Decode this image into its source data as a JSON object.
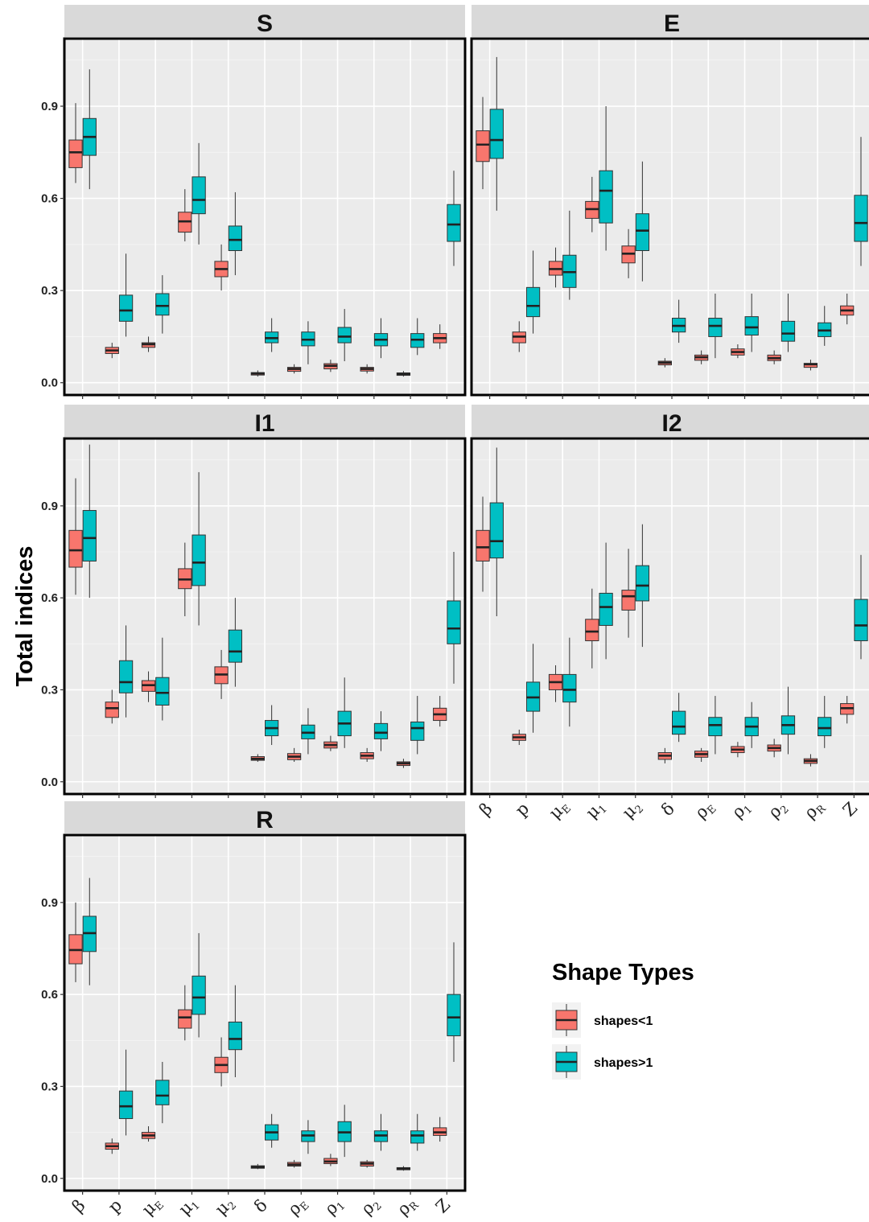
{
  "chart_data": {
    "type": "boxplot",
    "ylabel": "Total indices",
    "y_ticks": [
      "0.0",
      "0.3",
      "0.6",
      "0.9"
    ],
    "ylim": [
      -0.04,
      1.12
    ],
    "legend": {
      "title": "Shape Types",
      "entries": [
        {
          "label": "shapes<1",
          "color": "#F8766D"
        },
        {
          "label": "shapes>1",
          "color": "#00BFC4"
        }
      ]
    },
    "categories": [
      {
        "base": "β",
        "sub": ""
      },
      {
        "base": "p",
        "sub": ""
      },
      {
        "base": "μ",
        "sub": "E"
      },
      {
        "base": "μ",
        "sub": "1"
      },
      {
        "base": "μ",
        "sub": "2"
      },
      {
        "base": "δ",
        "sub": ""
      },
      {
        "base": "ρ",
        "sub": "E"
      },
      {
        "base": "ρ",
        "sub": "1"
      },
      {
        "base": "ρ",
        "sub": "2"
      },
      {
        "base": "ρ",
        "sub": "R"
      },
      {
        "base": "Z",
        "sub": ""
      }
    ],
    "panels": [
      {
        "name": "S",
        "series": [
          {
            "name": "shapes<1",
            "boxes": [
              [
                0.65,
                0.7,
                0.75,
                0.79,
                0.91
              ],
              [
                0.08,
                0.095,
                0.105,
                0.115,
                0.13
              ],
              [
                0.1,
                0.115,
                0.125,
                0.13,
                0.15
              ],
              [
                0.46,
                0.49,
                0.525,
                0.555,
                0.63
              ],
              [
                0.3,
                0.345,
                0.37,
                0.395,
                0.45
              ],
              [
                0.02,
                0.025,
                0.03,
                0.033,
                0.04
              ],
              [
                0.03,
                0.037,
                0.045,
                0.05,
                0.06
              ],
              [
                0.035,
                0.045,
                0.055,
                0.062,
                0.075
              ],
              [
                0.03,
                0.038,
                0.045,
                0.05,
                0.06
              ],
              [
                0.02,
                0.024,
                0.028,
                0.032,
                0.038
              ],
              [
                0.11,
                0.13,
                0.145,
                0.16,
                0.19
              ]
            ]
          },
          {
            "name": "shapes>1",
            "boxes": [
              [
                0.63,
                0.74,
                0.8,
                0.86,
                1.02
              ],
              [
                0.15,
                0.2,
                0.235,
                0.285,
                0.42
              ],
              [
                0.16,
                0.22,
                0.25,
                0.29,
                0.35
              ],
              [
                0.45,
                0.55,
                0.595,
                0.67,
                0.78
              ],
              [
                0.35,
                0.43,
                0.465,
                0.51,
                0.62
              ],
              [
                0.1,
                0.13,
                0.145,
                0.165,
                0.21
              ],
              [
                0.06,
                0.12,
                0.14,
                0.165,
                0.2
              ],
              [
                0.07,
                0.13,
                0.15,
                0.18,
                0.24
              ],
              [
                0.08,
                0.12,
                0.14,
                0.16,
                0.21
              ],
              [
                0.09,
                0.115,
                0.14,
                0.16,
                0.21
              ],
              [
                0.38,
                0.46,
                0.515,
                0.58,
                0.69
              ]
            ]
          }
        ]
      },
      {
        "name": "E",
        "series": [
          {
            "name": "shapes<1",
            "boxes": [
              [
                0.63,
                0.72,
                0.775,
                0.82,
                0.93
              ],
              [
                0.1,
                0.13,
                0.15,
                0.165,
                0.2
              ],
              [
                0.31,
                0.35,
                0.37,
                0.395,
                0.44
              ],
              [
                0.49,
                0.535,
                0.565,
                0.59,
                0.67
              ],
              [
                0.34,
                0.39,
                0.42,
                0.445,
                0.5
              ],
              [
                0.05,
                0.058,
                0.065,
                0.07,
                0.08
              ],
              [
                0.06,
                0.073,
                0.083,
                0.09,
                0.105
              ],
              [
                0.08,
                0.09,
                0.1,
                0.11,
                0.125
              ],
              [
                0.06,
                0.072,
                0.08,
                0.09,
                0.105
              ],
              [
                0.04,
                0.05,
                0.06,
                0.063,
                0.075
              ],
              [
                0.19,
                0.22,
                0.235,
                0.25,
                0.29
              ]
            ]
          },
          {
            "name": "shapes>1",
            "boxes": [
              [
                0.56,
                0.73,
                0.79,
                0.89,
                1.06
              ],
              [
                0.16,
                0.215,
                0.25,
                0.31,
                0.43
              ],
              [
                0.27,
                0.31,
                0.36,
                0.415,
                0.56
              ],
              [
                0.43,
                0.52,
                0.625,
                0.69,
                0.9
              ],
              [
                0.33,
                0.43,
                0.495,
                0.55,
                0.72
              ],
              [
                0.13,
                0.165,
                0.185,
                0.21,
                0.27
              ],
              [
                0.08,
                0.15,
                0.185,
                0.21,
                0.29
              ],
              [
                0.1,
                0.155,
                0.18,
                0.215,
                0.29
              ],
              [
                0.1,
                0.135,
                0.16,
                0.2,
                0.29
              ],
              [
                0.12,
                0.15,
                0.17,
                0.195,
                0.25
              ],
              [
                0.38,
                0.46,
                0.52,
                0.61,
                0.8
              ]
            ]
          }
        ]
      },
      {
        "name": "I1",
        "series": [
          {
            "name": "shapes<1",
            "boxes": [
              [
                0.61,
                0.7,
                0.755,
                0.82,
                0.99
              ],
              [
                0.19,
                0.21,
                0.24,
                0.26,
                0.3
              ],
              [
                0.26,
                0.295,
                0.315,
                0.33,
                0.36
              ],
              [
                0.54,
                0.63,
                0.66,
                0.695,
                0.78
              ],
              [
                0.27,
                0.32,
                0.35,
                0.375,
                0.43
              ],
              [
                0.065,
                0.07,
                0.075,
                0.082,
                0.09
              ],
              [
                0.065,
                0.072,
                0.082,
                0.092,
                0.11
              ],
              [
                0.1,
                0.11,
                0.12,
                0.13,
                0.15
              ],
              [
                0.065,
                0.075,
                0.085,
                0.095,
                0.11
              ],
              [
                0.045,
                0.053,
                0.06,
                0.065,
                0.075
              ],
              [
                0.18,
                0.2,
                0.22,
                0.24,
                0.28
              ]
            ]
          },
          {
            "name": "shapes>1",
            "boxes": [
              [
                0.6,
                0.72,
                0.795,
                0.885,
                1.1
              ],
              [
                0.21,
                0.29,
                0.325,
                0.395,
                0.51
              ],
              [
                0.2,
                0.25,
                0.29,
                0.34,
                0.47
              ],
              [
                0.51,
                0.64,
                0.715,
                0.805,
                1.01
              ],
              [
                0.31,
                0.39,
                0.425,
                0.495,
                0.6
              ],
              [
                0.12,
                0.15,
                0.175,
                0.2,
                0.25
              ],
              [
                0.09,
                0.14,
                0.16,
                0.185,
                0.24
              ],
              [
                0.11,
                0.15,
                0.19,
                0.23,
                0.34
              ],
              [
                0.1,
                0.14,
                0.16,
                0.19,
                0.23
              ],
              [
                0.09,
                0.135,
                0.175,
                0.195,
                0.28
              ],
              [
                0.32,
                0.45,
                0.5,
                0.59,
                0.75
              ]
            ]
          }
        ]
      },
      {
        "name": "I2",
        "series": [
          {
            "name": "shapes<1",
            "boxes": [
              [
                0.62,
                0.72,
                0.765,
                0.82,
                0.93
              ],
              [
                0.12,
                0.135,
                0.145,
                0.155,
                0.17
              ],
              [
                0.26,
                0.3,
                0.325,
                0.35,
                0.38
              ],
              [
                0.37,
                0.46,
                0.49,
                0.53,
                0.63
              ],
              [
                0.47,
                0.56,
                0.605,
                0.625,
                0.76
              ],
              [
                0.06,
                0.073,
                0.085,
                0.095,
                0.11
              ],
              [
                0.065,
                0.08,
                0.09,
                0.1,
                0.11
              ],
              [
                0.08,
                0.095,
                0.105,
                0.115,
                0.13
              ],
              [
                0.08,
                0.1,
                0.11,
                0.12,
                0.14
              ],
              [
                0.05,
                0.06,
                0.068,
                0.075,
                0.09
              ],
              [
                0.19,
                0.22,
                0.24,
                0.255,
                0.28
              ]
            ]
          },
          {
            "name": "shapes>1",
            "boxes": [
              [
                0.54,
                0.73,
                0.785,
                0.91,
                1.09
              ],
              [
                0.16,
                0.23,
                0.275,
                0.325,
                0.45
              ],
              [
                0.18,
                0.26,
                0.3,
                0.35,
                0.47
              ],
              [
                0.4,
                0.51,
                0.57,
                0.615,
                0.78
              ],
              [
                0.44,
                0.59,
                0.64,
                0.705,
                0.84
              ],
              [
                0.13,
                0.155,
                0.18,
                0.23,
                0.29
              ],
              [
                0.09,
                0.15,
                0.185,
                0.21,
                0.28
              ],
              [
                0.11,
                0.15,
                0.18,
                0.21,
                0.26
              ],
              [
                0.09,
                0.155,
                0.185,
                0.215,
                0.31
              ],
              [
                0.11,
                0.15,
                0.175,
                0.21,
                0.28
              ],
              [
                0.4,
                0.46,
                0.51,
                0.595,
                0.74
              ]
            ]
          }
        ]
      },
      {
        "name": "R",
        "series": [
          {
            "name": "shapes<1",
            "boxes": [
              [
                0.64,
                0.7,
                0.745,
                0.795,
                0.9
              ],
              [
                0.08,
                0.095,
                0.105,
                0.115,
                0.13
              ],
              [
                0.12,
                0.13,
                0.14,
                0.15,
                0.17
              ],
              [
                0.45,
                0.49,
                0.525,
                0.55,
                0.63
              ],
              [
                0.3,
                0.345,
                0.37,
                0.395,
                0.46
              ],
              [
                0.03,
                0.033,
                0.037,
                0.041,
                0.047
              ],
              [
                0.035,
                0.04,
                0.045,
                0.052,
                0.06
              ],
              [
                0.04,
                0.048,
                0.055,
                0.065,
                0.08
              ],
              [
                0.035,
                0.04,
                0.048,
                0.054,
                0.06
              ],
              [
                0.025,
                0.028,
                0.032,
                0.035,
                0.04
              ],
              [
                0.12,
                0.14,
                0.15,
                0.165,
                0.2
              ]
            ]
          },
          {
            "name": "shapes>1",
            "boxes": [
              [
                0.63,
                0.74,
                0.8,
                0.855,
                0.98
              ],
              [
                0.14,
                0.195,
                0.235,
                0.285,
                0.42
              ],
              [
                0.18,
                0.24,
                0.27,
                0.32,
                0.38
              ],
              [
                0.46,
                0.535,
                0.59,
                0.66,
                0.8
              ],
              [
                0.33,
                0.42,
                0.455,
                0.51,
                0.63
              ],
              [
                0.1,
                0.125,
                0.15,
                0.175,
                0.21
              ],
              [
                0.08,
                0.12,
                0.14,
                0.155,
                0.19
              ],
              [
                0.07,
                0.12,
                0.15,
                0.185,
                0.24
              ],
              [
                0.09,
                0.12,
                0.14,
                0.155,
                0.21
              ],
              [
                0.09,
                0.115,
                0.14,
                0.155,
                0.21
              ],
              [
                0.38,
                0.465,
                0.525,
                0.6,
                0.77
              ]
            ]
          }
        ]
      }
    ]
  }
}
